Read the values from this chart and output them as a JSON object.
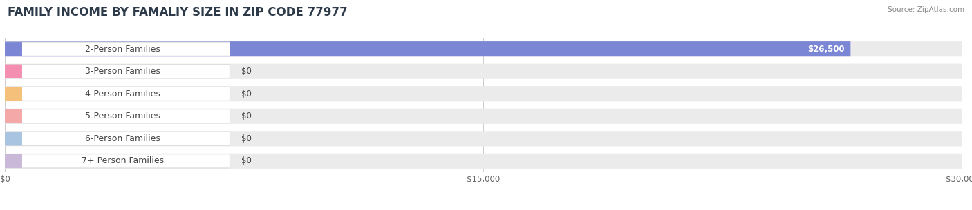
{
  "title": "FAMILY INCOME BY FAMALIY SIZE IN ZIP CODE 77977",
  "source": "Source: ZipAtlas.com",
  "categories": [
    "2-Person Families",
    "3-Person Families",
    "4-Person Families",
    "5-Person Families",
    "6-Person Families",
    "7+ Person Families"
  ],
  "values": [
    26500,
    0,
    0,
    0,
    0,
    0
  ],
  "bar_colors": [
    "#7b86d4",
    "#f48fb1",
    "#f5c07a",
    "#f4a9a8",
    "#a8c4e0",
    "#c9b8d8"
  ],
  "nub_colors": [
    "#7b86d4",
    "#f48fb1",
    "#f5c07a",
    "#f4a9a8",
    "#a8c4e0",
    "#c9b8d8"
  ],
  "value_labels": [
    "$26,500",
    "$0",
    "$0",
    "$0",
    "$0",
    "$0"
  ],
  "xlim": [
    0,
    30000
  ],
  "xticks": [
    0,
    15000,
    30000
  ],
  "xtick_labels": [
    "$0",
    "$15,000",
    "$30,000"
  ],
  "bg_color": "#ffffff",
  "bar_bg_color": "#ebebeb",
  "label_pill_color": "#ffffff",
  "title_fontsize": 12,
  "label_fontsize": 9,
  "value_fontsize": 8.5,
  "title_color": "#2d3a4a",
  "source_color": "#888888",
  "label_color": "#444444",
  "value_color_dark": "#444444",
  "value_color_light": "#ffffff"
}
